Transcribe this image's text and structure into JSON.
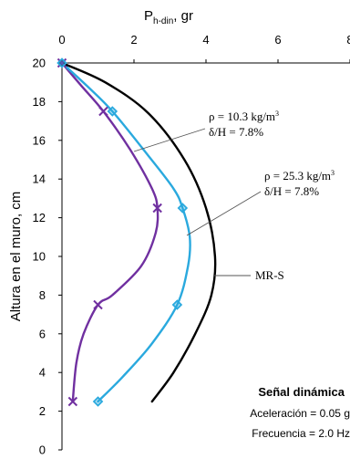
{
  "chart_data": {
    "type": "line",
    "xlabel": "P",
    "xlabel_sub": "h-din",
    "xlabel_unit": ", gr",
    "ylabel": "Altura en el muro, cm",
    "xlim": [
      0,
      8
    ],
    "ylim": [
      0,
      20
    ],
    "x_ticks": [
      0,
      2,
      4,
      6,
      8
    ],
    "y_ticks": [
      0,
      2,
      4,
      6,
      8,
      10,
      12,
      14,
      16,
      18,
      20
    ],
    "x_axis_position": "top",
    "grid": false,
    "series": [
      {
        "name": "ρ = 10.3 kg/m³, δ/H = 7.8%",
        "color": "#7030a0",
        "marker": "x",
        "points": [
          [
            0.0,
            20.0
          ],
          [
            1.15,
            17.5
          ],
          [
            2.65,
            12.5
          ],
          [
            1.0,
            7.5
          ],
          [
            0.3,
            2.5
          ]
        ],
        "curve": [
          [
            0.0,
            20.0
          ],
          [
            0.5,
            18.9
          ],
          [
            1.15,
            17.5
          ],
          [
            1.9,
            15.5
          ],
          [
            2.5,
            13.5
          ],
          [
            2.65,
            12.5
          ],
          [
            2.6,
            11.2
          ],
          [
            2.2,
            9.5
          ],
          [
            1.4,
            8.0
          ],
          [
            1.0,
            7.5
          ],
          [
            0.6,
            6.0
          ],
          [
            0.4,
            4.5
          ],
          [
            0.3,
            2.5
          ]
        ]
      },
      {
        "name": "ρ = 25.3 kg/m³, δ/H = 7.8%",
        "color": "#2aa9de",
        "marker": "diamond",
        "points": [
          [
            0.0,
            20.0
          ],
          [
            1.4,
            17.5
          ],
          [
            3.35,
            12.5
          ],
          [
            3.2,
            7.5
          ],
          [
            1.0,
            2.5
          ]
        ],
        "curve": [
          [
            0.0,
            20.0
          ],
          [
            0.7,
            18.8
          ],
          [
            1.4,
            17.5
          ],
          [
            2.4,
            15.2
          ],
          [
            3.1,
            13.5
          ],
          [
            3.35,
            12.5
          ],
          [
            3.55,
            11.0
          ],
          [
            3.5,
            9.5
          ],
          [
            3.2,
            7.5
          ],
          [
            2.5,
            5.5
          ],
          [
            1.7,
            3.8
          ],
          [
            1.0,
            2.5
          ]
        ]
      },
      {
        "name": "MR-S",
        "color": "#000000",
        "marker": "none",
        "points": [],
        "curve": [
          [
            0.0,
            20.0
          ],
          [
            1.2,
            19.0
          ],
          [
            2.4,
            17.4
          ],
          [
            3.4,
            15.0
          ],
          [
            4.0,
            12.5
          ],
          [
            4.25,
            10.0
          ],
          [
            4.15,
            8.0
          ],
          [
            3.7,
            6.0
          ],
          [
            3.1,
            4.0
          ],
          [
            2.5,
            2.5
          ]
        ]
      }
    ],
    "annotations": [
      {
        "line1_prefix": "ρ = 10.3 kg/m",
        "line1_sup": "3",
        "line2": "δ/H = 7.8%"
      },
      {
        "line1_prefix": "ρ = 25.3 kg/m",
        "line1_sup": "3",
        "line2": "δ/H = 7.8%"
      },
      {
        "line1": "MR-S"
      }
    ],
    "signal_box": {
      "title": "Señal dinámica",
      "line1": "Aceleración = 0.05 g",
      "line2": "Frecuencia = 2.0 Hz"
    }
  }
}
